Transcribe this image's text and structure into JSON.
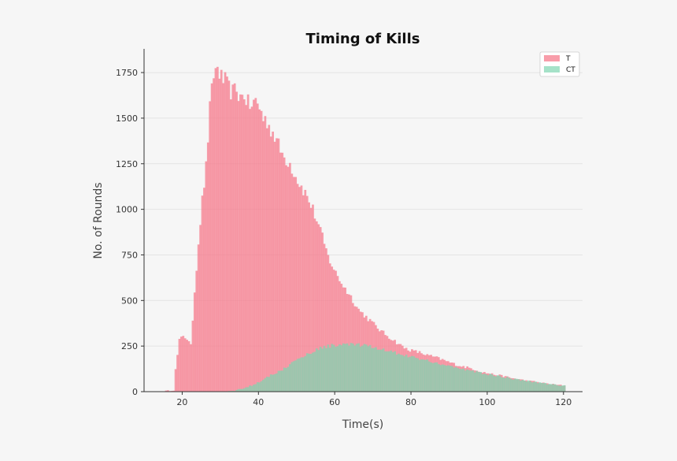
{
  "chart_data": {
    "type": "bar",
    "title": "Timing of Kills",
    "xlabel": "Time(s)",
    "ylabel": "No. of Rounds",
    "xlim": [
      10,
      125
    ],
    "ylim": [
      0,
      1880
    ],
    "xticks": [
      20,
      40,
      60,
      80,
      100,
      120
    ],
    "yticks": [
      0,
      250,
      500,
      750,
      1000,
      1250,
      1500,
      1750
    ],
    "legend_position": "top-right",
    "bin_width": 0.5,
    "grid": "horizontal",
    "series": [
      {
        "name": "T",
        "color": "#f57c8e",
        "opacity": 0.75,
        "x": [
          15,
          16,
          17.5,
          18,
          19,
          20,
          21,
          22,
          23,
          24,
          25,
          26,
          27,
          28,
          28.5,
          29,
          29.5,
          30,
          31,
          32,
          33,
          34,
          35,
          36,
          37,
          38,
          39,
          40,
          41,
          42,
          44,
          46,
          48,
          50,
          52,
          54,
          56,
          58,
          60,
          62,
          64,
          66,
          68,
          70,
          72,
          74,
          76,
          78,
          80,
          82,
          84,
          86,
          88,
          90,
          92,
          94,
          96,
          98,
          100,
          102,
          104,
          106,
          108,
          110,
          112,
          114,
          116,
          118,
          120
        ],
        "values": [
          3,
          5,
          8,
          120,
          280,
          310,
          290,
          250,
          550,
          820,
          1050,
          1230,
          1550,
          1740,
          1760,
          1780,
          1750,
          1720,
          1700,
          1660,
          1640,
          1660,
          1610,
          1630,
          1580,
          1560,
          1600,
          1560,
          1500,
          1480,
          1400,
          1300,
          1250,
          1160,
          1090,
          1000,
          880,
          740,
          650,
          580,
          520,
          450,
          410,
          370,
          330,
          300,
          270,
          240,
          225,
          215,
          200,
          190,
          175,
          160,
          145,
          135,
          125,
          110,
          100,
          92,
          85,
          75,
          68,
          60,
          55,
          48,
          42,
          37,
          33
        ]
      },
      {
        "name": "CT",
        "color": "#7fd6b0",
        "opacity": 0.7,
        "x": [
          30,
          32,
          34,
          36,
          38,
          40,
          42,
          44,
          46,
          48,
          50,
          52,
          54,
          56,
          58,
          60,
          62,
          64,
          66,
          68,
          70,
          72,
          74,
          76,
          78,
          80,
          82,
          84,
          86,
          88,
          90,
          92,
          94,
          96,
          98,
          100,
          102,
          104,
          106,
          108,
          110,
          112,
          114,
          116,
          118,
          120
        ],
        "values": [
          0,
          2,
          8,
          20,
          35,
          55,
          80,
          100,
          120,
          150,
          175,
          200,
          220,
          240,
          250,
          255,
          260,
          258,
          255,
          250,
          242,
          232,
          222,
          212,
          200,
          190,
          180,
          170,
          160,
          150,
          140,
          130,
          120,
          112,
          103,
          95,
          88,
          80,
          72,
          66,
          60,
          54,
          48,
          42,
          38,
          33
        ]
      }
    ]
  }
}
